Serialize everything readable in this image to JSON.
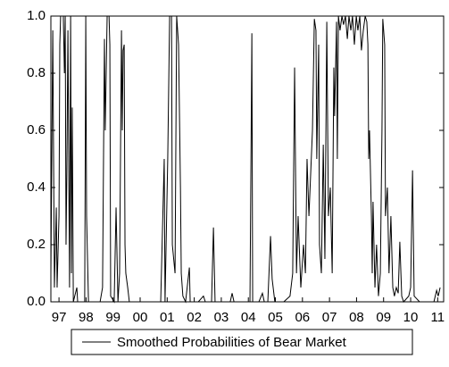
{
  "chart_data": {
    "type": "line",
    "x": [
      1997.2,
      1997.27,
      1997.33,
      1997.4,
      1997.43,
      1997.5,
      1997.53,
      1997.56,
      1997.66,
      1997.7,
      1997.73,
      1997.76,
      1997.79,
      1997.83,
      1997.89,
      1997.93,
      1997.96,
      1997.99,
      1998.03,
      1998.16,
      1998.19,
      1998.45,
      1998.49,
      1998.52,
      1998.55,
      1998.59,
      1999.02,
      1999.11,
      1999.18,
      1999.21,
      1999.28,
      1999.35,
      1999.38,
      1999.41,
      1999.54,
      1999.61,
      1999.68,
      1999.74,
      1999.81,
      1999.84,
      1999.87,
      1999.91,
      1999.94,
      1999.97,
      2000.04,
      2000.1,
      2001.26,
      2001.39,
      2001.42,
      2001.52,
      2001.59,
      2001.66,
      2001.69,
      2001.79,
      2001.85,
      2001.92,
      2001.99,
      2002.02,
      2002.08,
      2002.18,
      2002.32,
      2002.35,
      2002.65,
      2002.84,
      2002.91,
      2003.14,
      2003.21,
      2003.27,
      2003.83,
      2003.9,
      2003.97,
      2004.56,
      2004.63,
      2004.66,
      2004.89,
      2005.02,
      2005.09,
      2005.22,
      2005.32,
      2005.38,
      2005.48,
      2005.81,
      2006.04,
      2006.14,
      2006.21,
      2006.28,
      2006.34,
      2006.44,
      2006.54,
      2006.61,
      2006.67,
      2006.74,
      2006.87,
      2006.94,
      2007.0,
      2007.03,
      2007.1,
      2007.13,
      2007.2,
      2007.27,
      2007.33,
      2007.4,
      2007.46,
      2007.53,
      2007.6,
      2007.66,
      2007.69,
      2007.76,
      2007.79,
      2007.83,
      2007.89,
      2007.96,
      2008.02,
      2008.09,
      2008.16,
      2008.22,
      2008.29,
      2008.35,
      2008.42,
      2008.49,
      2008.55,
      2008.62,
      2008.68,
      2008.75,
      2008.82,
      2008.88,
      2008.92,
      2008.95,
      2008.98,
      2009.05,
      2009.08,
      2009.11,
      2009.18,
      2009.24,
      2009.31,
      2009.38,
      2009.44,
      2009.47,
      2009.54,
      2009.57,
      2009.64,
      2009.7,
      2009.77,
      2009.84,
      2009.9,
      2009.97,
      2010.04,
      2010.1,
      2010.17,
      2010.24,
      2010.43,
      2010.5,
      2010.57,
      2010.63,
      2010.83,
      2011.16,
      2011.36,
      2011.46,
      2011.52,
      2011.59
    ],
    "series": [
      {
        "name": "Smoothed Probabilities of Bear Market",
        "color": "#000000",
        "values": [
          0.1,
          0.95,
          0.05,
          0.33,
          0.05,
          0.3,
          0.9,
          1,
          1,
          0.8,
          1,
          0.2,
          0.45,
          0.95,
          0.05,
          1,
          0.1,
          0.68,
          0,
          0.05,
          0,
          0,
          1,
          0.3,
          0.17,
          0,
          0,
          0.05,
          0.92,
          0.6,
          1,
          1,
          0.9,
          0.02,
          0,
          0.33,
          0,
          0.1,
          0.95,
          0.6,
          0.88,
          0.9,
          0.2,
          0.1,
          0.05,
          0,
          0,
          0.5,
          0,
          0.5,
          1,
          1,
          0.2,
          0.1,
          1,
          0.9,
          0.4,
          0.1,
          0.02,
          0,
          0.12,
          0,
          0,
          0.02,
          0,
          0,
          0.26,
          0,
          0,
          0.03,
          0,
          0,
          0.94,
          0,
          0,
          0.03,
          0,
          0,
          0.23,
          0.08,
          0,
          0,
          0.02,
          0.1,
          0.82,
          0.1,
          0.3,
          0.05,
          0.2,
          0.1,
          0.5,
          0.3,
          0.6,
          0.99,
          0.95,
          0.5,
          0.9,
          0.2,
          0.1,
          0.55,
          0.15,
          0.98,
          0.3,
          0.4,
          0.1,
          0.82,
          0.65,
          0.98,
          0.5,
          1,
          0.95,
          1,
          0.97,
          1,
          0.92,
          1,
          0.95,
          1,
          0.9,
          1,
          0.95,
          1,
          0.88,
          0.95,
          1,
          0.98,
          0.9,
          0.5,
          0.6,
          0.3,
          0.1,
          0.35,
          0.05,
          0.2,
          0.02,
          0.1,
          0.6,
          0.99,
          0.9,
          0.3,
          0.4,
          0.1,
          0.3,
          0.05,
          0.02,
          0.05,
          0.03,
          0.21,
          0.02,
          0,
          0.02,
          0.05,
          0.46,
          0.02,
          0,
          0,
          0,
          0.04,
          0.02,
          0.05
        ]
      }
    ],
    "xlim": [
      1997.2,
      2011.72
    ],
    "xticks": [
      {
        "value": 1997.5,
        "label": "97"
      },
      {
        "value": 1998.5,
        "label": "98"
      },
      {
        "value": 1999.5,
        "label": "99"
      },
      {
        "value": 2000.5,
        "label": "00"
      },
      {
        "value": 2001.5,
        "label": "01"
      },
      {
        "value": 2002.5,
        "label": "02"
      },
      {
        "value": 2003.5,
        "label": "03"
      },
      {
        "value": 2004.5,
        "label": "04"
      },
      {
        "value": 2005.5,
        "label": "05"
      },
      {
        "value": 2006.5,
        "label": "06"
      },
      {
        "value": 2007.5,
        "label": "07"
      },
      {
        "value": 2008.5,
        "label": "08"
      },
      {
        "value": 2009.5,
        "label": "09"
      },
      {
        "value": 2010.5,
        "label": "10"
      },
      {
        "value": 2011.5,
        "label": "11"
      }
    ],
    "ylim": [
      0,
      1
    ],
    "yticks": [
      {
        "value": 0,
        "label": "0.0"
      },
      {
        "value": 0.2,
        "label": "0.2"
      },
      {
        "value": 0.4,
        "label": "0.4"
      },
      {
        "value": 0.6,
        "label": "0.6"
      },
      {
        "value": 0.8,
        "label": "0.8"
      },
      {
        "value": 1,
        "label": "1.0"
      }
    ],
    "grid": false,
    "legend": "bottom"
  }
}
